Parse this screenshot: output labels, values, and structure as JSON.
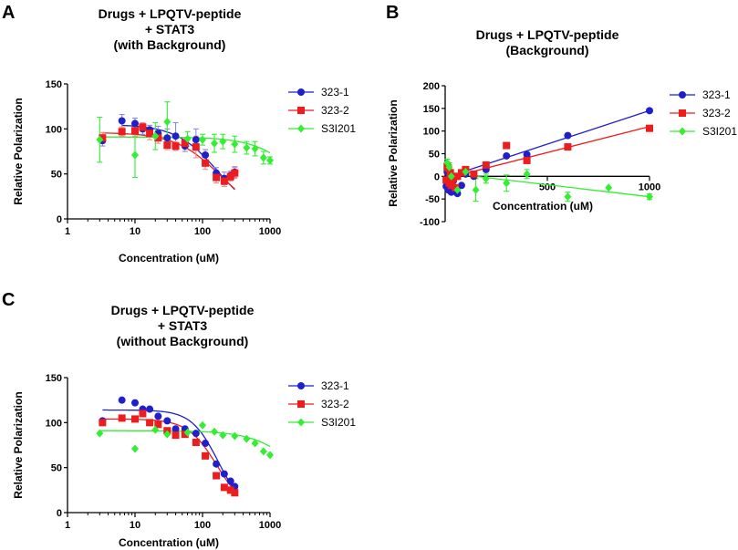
{
  "colors": {
    "323-1": "#1f1fcc",
    "323-2": "#ee1c1c",
    "S3I201": "#33ee33",
    "axis": "#000000"
  },
  "chart_data": [
    {
      "panel": "A",
      "type": "scatter",
      "title": [
        "Drugs + LPQTV-peptide",
        "+ STAT3",
        "(with Background)"
      ],
      "xlabel": "Concentration (uM)",
      "ylabel": "Relative Polarization",
      "xscale": "log",
      "xlim": [
        1,
        1000
      ],
      "ylim": [
        0,
        150
      ],
      "xticks": [
        1,
        10,
        100,
        1000
      ],
      "xtick_labels": [
        "1",
        "10",
        "100",
        "1000"
      ],
      "yticks": [
        0,
        50,
        100,
        150
      ],
      "ytick_labels": [
        "0",
        "50",
        "100",
        "150"
      ],
      "legend_position": "right",
      "series": [
        {
          "name": "323-1",
          "marker": "circle",
          "x": [
            3.3,
            6.4,
            10,
            13,
            16.5,
            22,
            30,
            40,
            55,
            80,
            110,
            160,
            210,
            260,
            300
          ],
          "y": [
            87,
            109,
            106,
            100,
            99,
            95,
            90,
            92,
            81,
            88,
            71,
            51,
            45,
            48,
            52
          ],
          "err": [
            6,
            7,
            6,
            6,
            5,
            8,
            10,
            15,
            6,
            12,
            6,
            6,
            7,
            5,
            6
          ],
          "fit_x": [
            6.4,
            300
          ],
          "fit_top": 105,
          "fit_ic50": 170,
          "fit_hill": 1.4
        },
        {
          "name": "323-2",
          "marker": "square",
          "x": [
            3.3,
            6.4,
            10,
            13,
            16.5,
            22,
            30,
            40,
            55,
            80,
            110,
            160,
            210,
            260,
            300
          ],
          "y": [
            90,
            97,
            98,
            102,
            95,
            90,
            82,
            81,
            84,
            80,
            62,
            46,
            42,
            47,
            51
          ],
          "err": [
            6,
            5,
            6,
            5,
            7,
            6,
            5,
            5,
            6,
            12,
            7,
            6,
            6,
            5,
            6
          ],
          "fit_x": [
            3.3,
            300
          ],
          "fit_top": 96,
          "fit_ic50": 185,
          "fit_hill": 1.3
        },
        {
          "name": "S3I201",
          "marker": "diamond",
          "x": [
            3,
            10,
            20,
            30,
            60,
            100,
            150,
            200,
            300,
            450,
            600,
            800,
            1000
          ],
          "y": [
            88,
            71,
            92,
            108,
            89,
            88,
            84,
            86,
            83,
            79,
            78,
            68,
            65
          ],
          "err": [
            25,
            25,
            15,
            22,
            8,
            6,
            10,
            8,
            9,
            7,
            8,
            7,
            4
          ],
          "fit_x": [
            3,
            1000
          ],
          "fit_top": 91,
          "fit_ic50": 3000,
          "fit_hill": 1.3
        }
      ]
    },
    {
      "panel": "B",
      "type": "scatter",
      "title": [
        "Drugs + LPQTV-peptide",
        "(Background)"
      ],
      "xlabel": "Concentration (uM)",
      "ylabel": "Relative Polarization",
      "xscale": "linear",
      "xlim": [
        0,
        1000
      ],
      "ylim": [
        -100,
        200
      ],
      "xticks": [
        500,
        1000
      ],
      "xtick_labels": [
        "500",
        "1000"
      ],
      "yticks": [
        -100,
        -50,
        0,
        50,
        100,
        150,
        200
      ],
      "ytick_labels": [
        "-100",
        "-50",
        "0",
        "50",
        "100",
        "150",
        "200"
      ],
      "legend_position": "right",
      "series": [
        {
          "name": "323-1",
          "marker": "circle",
          "x": [
            5,
            10,
            15,
            20,
            25,
            30,
            40,
            50,
            60,
            80,
            100,
            140,
            200,
            300,
            400,
            600,
            1000
          ],
          "y": [
            -22,
            10,
            -30,
            5,
            -20,
            -35,
            -10,
            -30,
            -38,
            -20,
            5,
            0,
            15,
            45,
            48,
            90,
            145
          ],
          "err": [
            0,
            0,
            0,
            0,
            0,
            0,
            0,
            0,
            0,
            0,
            0,
            0,
            0,
            0,
            0,
            0,
            0
          ],
          "fit": [
            [
              0,
              -3
            ],
            [
              1000,
              145
            ]
          ]
        },
        {
          "name": "323-2",
          "marker": "square",
          "x": [
            5,
            10,
            15,
            20,
            25,
            30,
            40,
            50,
            60,
            80,
            100,
            140,
            200,
            300,
            400,
            600,
            1000
          ],
          "y": [
            -8,
            22,
            18,
            -15,
            8,
            -20,
            -5,
            -25,
            0,
            8,
            15,
            5,
            25,
            68,
            35,
            65,
            106
          ],
          "err": [
            0,
            0,
            0,
            0,
            0,
            0,
            0,
            0,
            0,
            0,
            0,
            0,
            0,
            0,
            0,
            0,
            0
          ],
          "fit": [
            [
              0,
              -5
            ],
            [
              1000,
              110
            ]
          ]
        },
        {
          "name": "S3I201",
          "marker": "diamond",
          "x": [
            10,
            20,
            30,
            60,
            100,
            150,
            200,
            300,
            400,
            600,
            800,
            1000
          ],
          "y": [
            30,
            20,
            0,
            -30,
            10,
            -30,
            -5,
            -15,
            5,
            -45,
            -25,
            -45
          ],
          "err": [
            8,
            10,
            12,
            10,
            8,
            25,
            10,
            18,
            10,
            10,
            0,
            6
          ],
          "fit": [
            [
              0,
              8
            ],
            [
              1000,
              -45
            ]
          ]
        }
      ]
    },
    {
      "panel": "C",
      "type": "scatter",
      "title": [
        "Drugs + LPQTV-peptide",
        "+ STAT3",
        "(without Background)"
      ],
      "xlabel": "Concentration (uM)",
      "ylabel": "Relative Polarization",
      "xscale": "log",
      "xlim": [
        1,
        1000
      ],
      "ylim": [
        0,
        150
      ],
      "xticks": [
        1,
        10,
        100,
        1000
      ],
      "xtick_labels": [
        "1",
        "10",
        "100",
        "1000"
      ],
      "yticks": [
        0,
        50,
        100,
        150
      ],
      "ytick_labels": [
        "0",
        "50",
        "100",
        "150"
      ],
      "legend_position": "right",
      "series": [
        {
          "name": "323-1",
          "marker": "circle",
          "x": [
            3.3,
            6.4,
            10,
            13,
            16.5,
            22,
            30,
            40,
            55,
            80,
            110,
            160,
            210,
            260,
            300
          ],
          "y": [
            102,
            125,
            122,
            115,
            115,
            107,
            102,
            93,
            93,
            88,
            77,
            54,
            43,
            35,
            29
          ],
          "err": [
            0,
            0,
            0,
            0,
            0,
            0,
            0,
            0,
            0,
            0,
            0,
            0,
            0,
            0,
            0
          ],
          "fit_x": [
            3.3,
            300
          ],
          "fit_top": 114,
          "fit_ic50": 170,
          "fit_hill": 2.2
        },
        {
          "name": "323-2",
          "marker": "square",
          "x": [
            3.3,
            6.4,
            10,
            13,
            16.5,
            22,
            30,
            40,
            55,
            80,
            110,
            160,
            210,
            260,
            300
          ],
          "y": [
            100,
            105,
            104,
            110,
            100,
            98,
            91,
            86,
            87,
            78,
            63,
            41,
            28,
            25,
            22
          ],
          "err": [
            0,
            0,
            0,
            0,
            0,
            0,
            0,
            0,
            0,
            0,
            0,
            0,
            0,
            0,
            0
          ],
          "fit_x": [
            3.3,
            300
          ],
          "fit_top": 104,
          "fit_ic50": 165,
          "fit_hill": 2.0
        },
        {
          "name": "S3I201",
          "marker": "diamond",
          "x": [
            3,
            10,
            20,
            30,
            60,
            100,
            150,
            200,
            300,
            450,
            600,
            800,
            1000
          ],
          "y": [
            88,
            71,
            92,
            87,
            89,
            97,
            90,
            86,
            85,
            82,
            77,
            68,
            64
          ],
          "err": [
            0,
            0,
            0,
            0,
            0,
            0,
            0,
            0,
            0,
            0,
            0,
            0,
            0
          ],
          "fit_x": [
            3,
            1000
          ],
          "fit_top": 91,
          "fit_ic50": 3000,
          "fit_hill": 1.3
        }
      ]
    }
  ]
}
